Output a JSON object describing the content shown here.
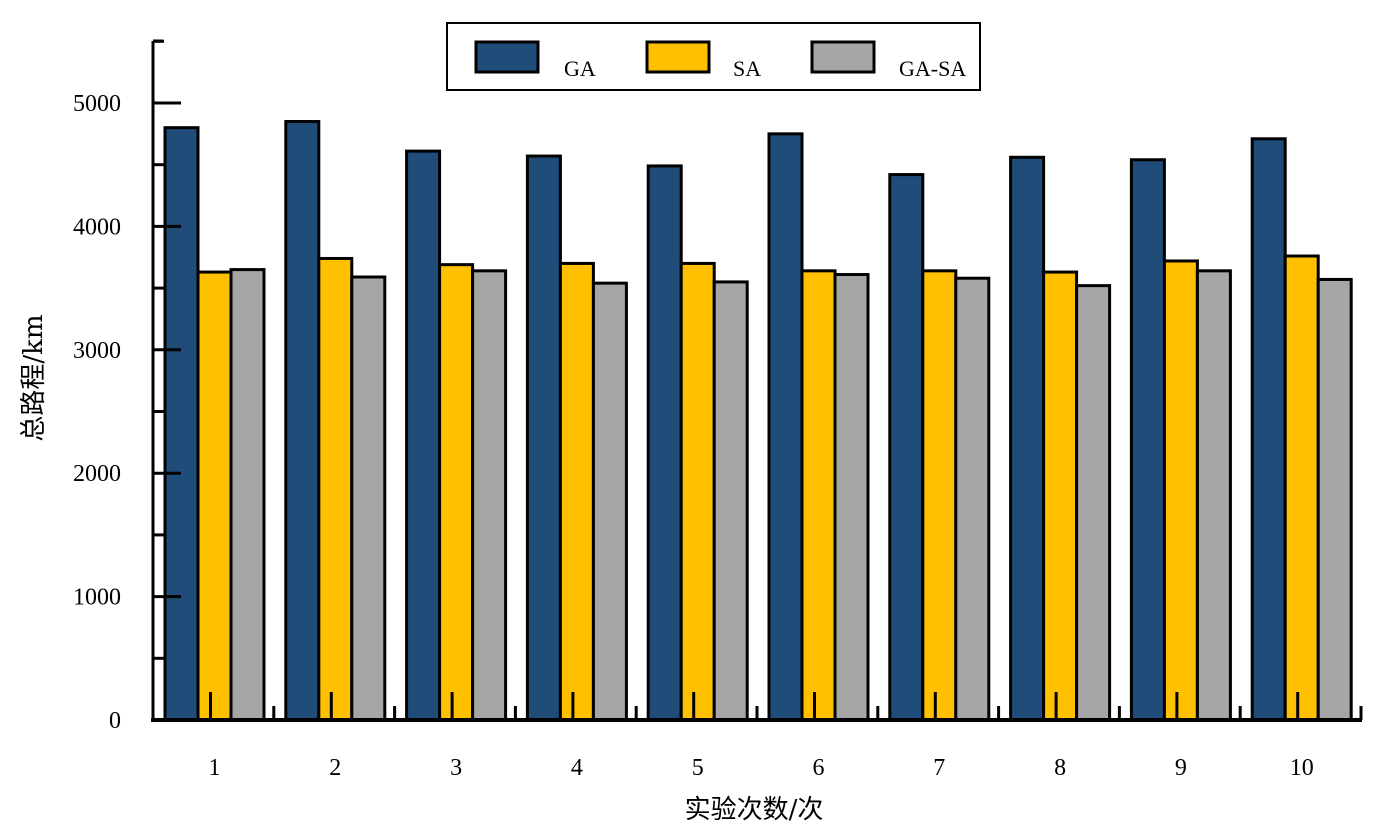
{
  "chart_data": {
    "type": "bar",
    "title": "",
    "xlabel": "实验次数/次",
    "ylabel": "总路程/km",
    "categories": [
      "1",
      "2",
      "3",
      "4",
      "5",
      "6",
      "7",
      "8",
      "9",
      "10"
    ],
    "series": [
      {
        "name": "GA",
        "color": "#204C7A",
        "values": [
          4800,
          4850,
          4610,
          4570,
          4490,
          4750,
          4420,
          4560,
          4540,
          4710
        ]
      },
      {
        "name": "SA",
        "color": "#FFC000",
        "values": [
          3630,
          3740,
          3690,
          3700,
          3700,
          3640,
          3640,
          3630,
          3720,
          3760
        ]
      },
      {
        "name": "GA-SA",
        "color": "#A6A6A6",
        "values": [
          3650,
          3590,
          3640,
          3540,
          3550,
          3610,
          3580,
          3520,
          3640,
          3570
        ]
      }
    ],
    "yticks": [
      "0",
      "1000",
      "2000",
      "3000",
      "4000",
      "5000"
    ],
    "ylim": [
      0,
      5500
    ],
    "grid": false,
    "legend_position": "top-center"
  }
}
